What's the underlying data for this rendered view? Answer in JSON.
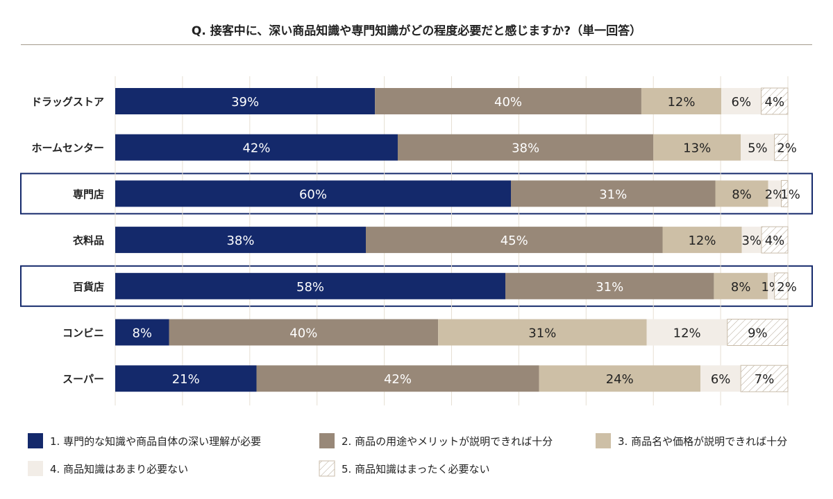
{
  "chart_data": {
    "type": "bar",
    "orientation": "horizontal",
    "stacked": true,
    "title": "Q. 接客中に、深い商品知識や専門知識がどの程度必要だと感じますか?（単一回答）",
    "categories": [
      "ドラッグストア",
      "ホームセンター",
      "専門店",
      "衣料品",
      "百貨店",
      "コンビニ",
      "スーパー"
    ],
    "highlighted_categories": [
      "専門店",
      "百貨店"
    ],
    "unit": "%",
    "xlim": [
      0,
      100
    ],
    "grid": true,
    "legend_position": "bottom",
    "series": [
      {
        "name": "1. 専門的な知識や商品自体の深い理解が必要",
        "color": "#14296b",
        "values": [
          39,
          42,
          60,
          38,
          58,
          8,
          21
        ]
      },
      {
        "name": "2. 商品の用途やメリットが説明できれば十分",
        "color": "#988878",
        "values": [
          40,
          38,
          31,
          45,
          31,
          40,
          42
        ]
      },
      {
        "name": "3. 商品名や価格が説明できれば十分",
        "color": "#cdbfa6",
        "values": [
          12,
          13,
          8,
          12,
          8,
          31,
          24
        ]
      },
      {
        "name": "4. 商品知識はあまり必要ない",
        "color": "#f2ede7",
        "values": [
          6,
          5,
          2,
          3,
          1,
          12,
          6
        ]
      },
      {
        "name": "5. 商品知識はまったく必要ない",
        "color": "hatch",
        "values": [
          4,
          2,
          1,
          4,
          2,
          9,
          7
        ]
      }
    ]
  }
}
